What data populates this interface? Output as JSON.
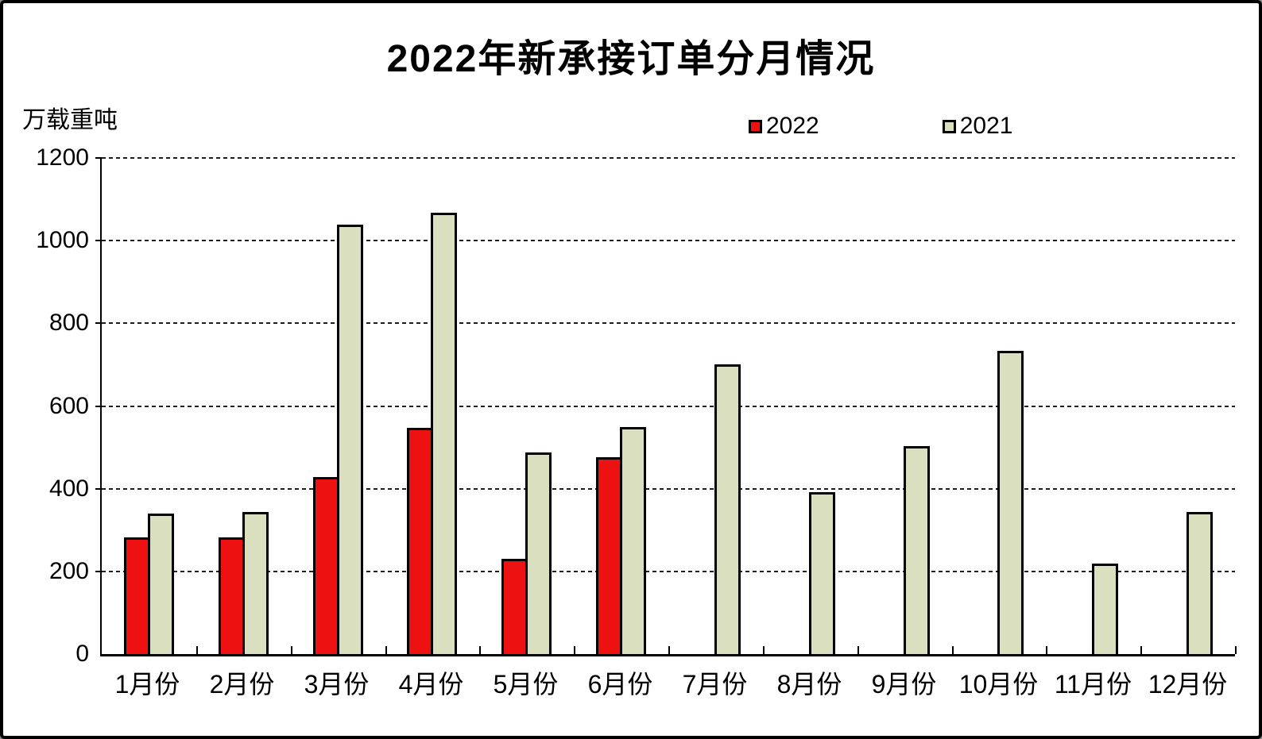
{
  "title": "2022年新承接订单分月情况",
  "y_axis": {
    "unit_label": "万载重吨",
    "ticks": [
      0,
      200,
      400,
      600,
      800,
      1000,
      1200
    ]
  },
  "legend": {
    "items": [
      {
        "label": "2022",
        "color": "#ee1111"
      },
      {
        "label": "2021",
        "color": "#d9dfbf"
      }
    ]
  },
  "chart_data": {
    "type": "bar",
    "title": "2022年新承接订单分月情况",
    "xlabel": "",
    "ylabel": "万载重吨",
    "ylim": [
      0,
      1200
    ],
    "y_tick_interval": 200,
    "grid": "horizontal-dashed",
    "legend_position": "top-right",
    "categories": [
      "1月份",
      "2月份",
      "3月份",
      "4月份",
      "5月份",
      "6月份",
      "7月份",
      "8月份",
      "9月份",
      "10月份",
      "11月份",
      "12月份"
    ],
    "series": [
      {
        "name": "2022",
        "color": "#ee1111",
        "border_color": "#000000",
        "values": [
          283,
          282,
          428,
          547,
          230,
          476,
          null,
          null,
          null,
          null,
          null,
          null
        ]
      },
      {
        "name": "2021",
        "color": "#d9dfbf",
        "border_color": "#000000",
        "values": [
          339,
          343,
          1038,
          1068,
          488,
          550,
          700,
          391,
          503,
          733,
          218,
          343
        ]
      }
    ]
  }
}
